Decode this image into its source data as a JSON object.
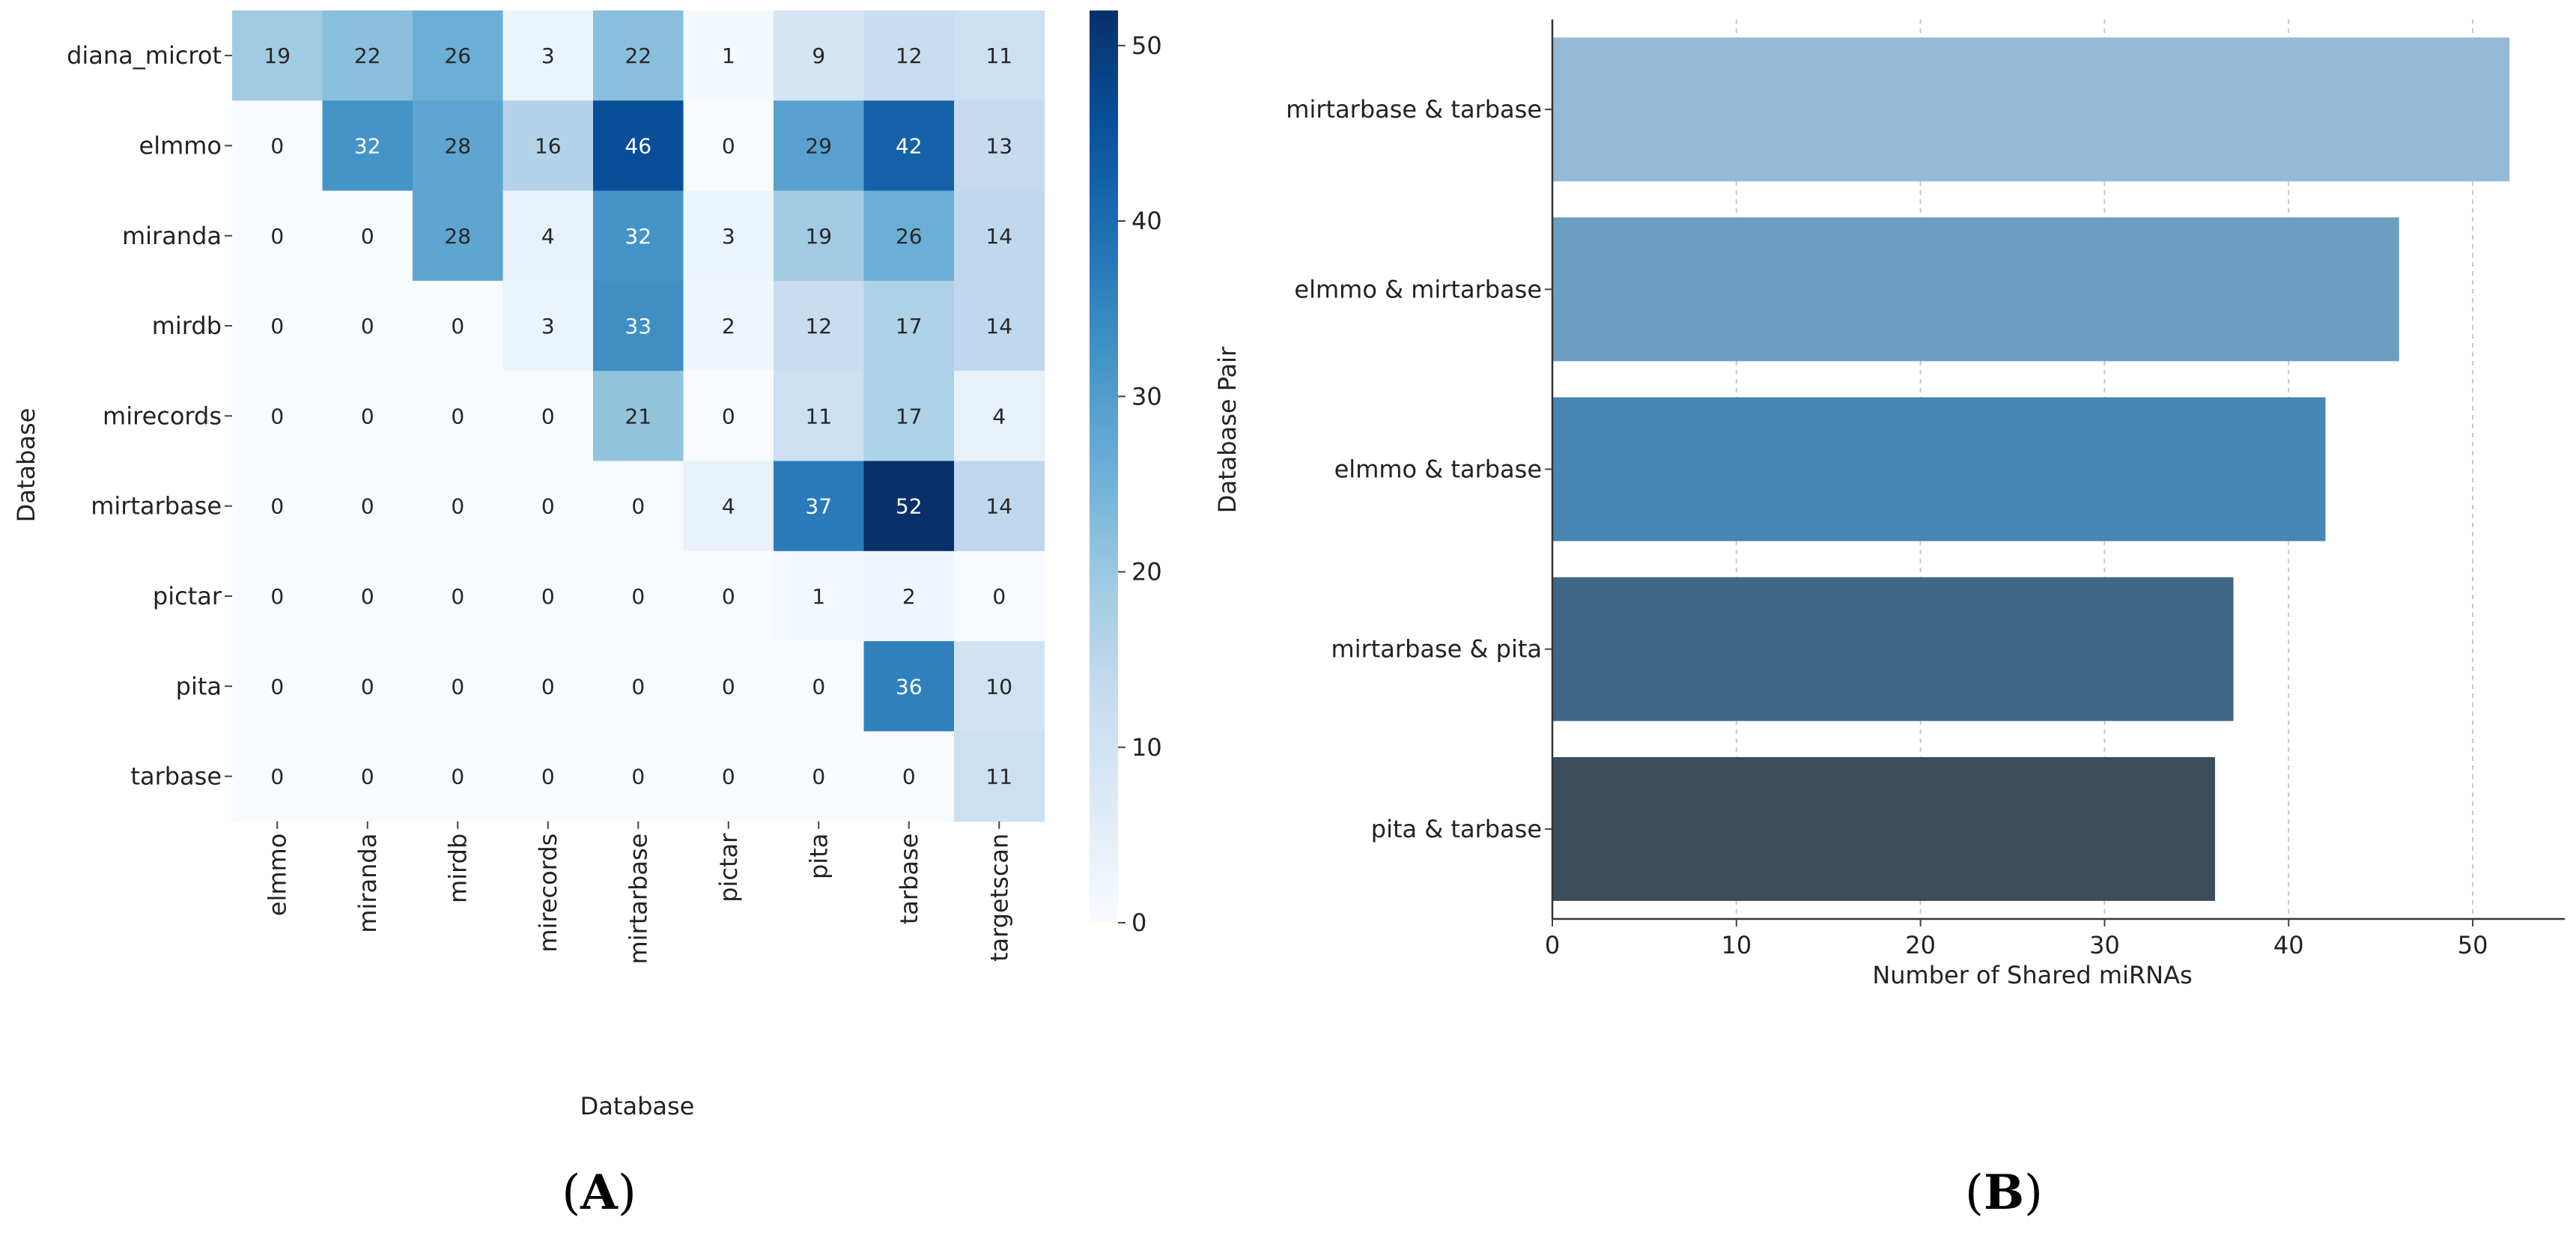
{
  "chart_data": [
    {
      "type": "heatmap",
      "panel_label": "(A)",
      "panel_letter": "A",
      "xlabel": "Database",
      "ylabel": "Database",
      "rows": [
        "diana_microt",
        "elmmo",
        "miranda",
        "mirdb",
        "mirecords",
        "mirtarbase",
        "pictar",
        "pita",
        "tarbase"
      ],
      "columns": [
        "elmmo",
        "miranda",
        "mirdb",
        "mirecords",
        "mirtarbase",
        "pictar",
        "pita",
        "tarbase",
        "targetscan"
      ],
      "values": [
        [
          19,
          22,
          26,
          3,
          22,
          1,
          9,
          12,
          11
        ],
        [
          0,
          32,
          28,
          16,
          46,
          0,
          29,
          42,
          13
        ],
        [
          0,
          0,
          28,
          4,
          32,
          3,
          19,
          26,
          14
        ],
        [
          0,
          0,
          0,
          3,
          33,
          2,
          12,
          17,
          14
        ],
        [
          0,
          0,
          0,
          0,
          21,
          0,
          11,
          17,
          4
        ],
        [
          0,
          0,
          0,
          0,
          0,
          4,
          37,
          52,
          14
        ],
        [
          0,
          0,
          0,
          0,
          0,
          0,
          1,
          2,
          0
        ],
        [
          0,
          0,
          0,
          0,
          0,
          0,
          0,
          36,
          10
        ],
        [
          0,
          0,
          0,
          0,
          0,
          0,
          0,
          0,
          11
        ]
      ],
      "colorbar": {
        "min": 0,
        "max": 52,
        "ticks": [
          0,
          10,
          20,
          30,
          40,
          50
        ],
        "colormap": "Blues"
      },
      "colors": [
        "#f7fbff",
        "#deebf7",
        "#c6dbef",
        "#9ecae1",
        "#6baed6",
        "#4292c6",
        "#2171b5",
        "#08519c",
        "#08306b"
      ]
    },
    {
      "type": "bar",
      "orientation": "horizontal",
      "panel_label": "(B)",
      "panel_letter": "B",
      "xlabel": "Number of Shared miRNAs",
      "ylabel": "Database Pair",
      "categories": [
        "mirtarbase & tarbase",
        "elmmo & mirtarbase",
        "elmmo & tarbase",
        "mirtarbase & pita",
        "pita & tarbase"
      ],
      "values": [
        52,
        46,
        42,
        37,
        36
      ],
      "xlim": [
        0,
        55
      ],
      "xticks": [
        0,
        10,
        20,
        30,
        40,
        50
      ],
      "grid": "x-dashed",
      "bar_colors": [
        "#94bad7",
        "#6b9ec1",
        "#4785b2",
        "#406787",
        "#3b4c5a"
      ]
    }
  ]
}
